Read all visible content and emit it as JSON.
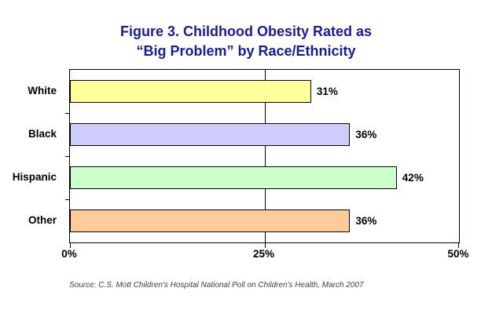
{
  "title": {
    "line1": "Figure 3. Childhood Obesity Rated as",
    "line2": "“Big Problem” by Race/Ethnicity",
    "color": "#1a1a9c"
  },
  "source": "Source: C.S. Mott Children's Hospital National Poll on Children's Health, March 2007",
  "chart_data": {
    "type": "bar",
    "orientation": "horizontal",
    "title": "Figure 3. Childhood Obesity Rated as “Big Problem” by Race/Ethnicity",
    "categories": [
      "White",
      "Black",
      "Hispanic",
      "Other"
    ],
    "values": [
      31,
      36,
      42,
      36
    ],
    "value_labels": [
      "31%",
      "36%",
      "42%",
      "36%"
    ],
    "bar_colors": [
      "#ffff99",
      "#ccccff",
      "#ccffcc",
      "#ffcc99"
    ],
    "bar_border_color": "#000000",
    "xlim": [
      0,
      50
    ],
    "x_ticks": [
      0,
      25,
      50
    ],
    "x_tick_labels": [
      "0%",
      "25%",
      "50%"
    ],
    "gridlines": "single vertical gridline at 25%",
    "legend": "none",
    "xlabel": "",
    "ylabel": ""
  }
}
